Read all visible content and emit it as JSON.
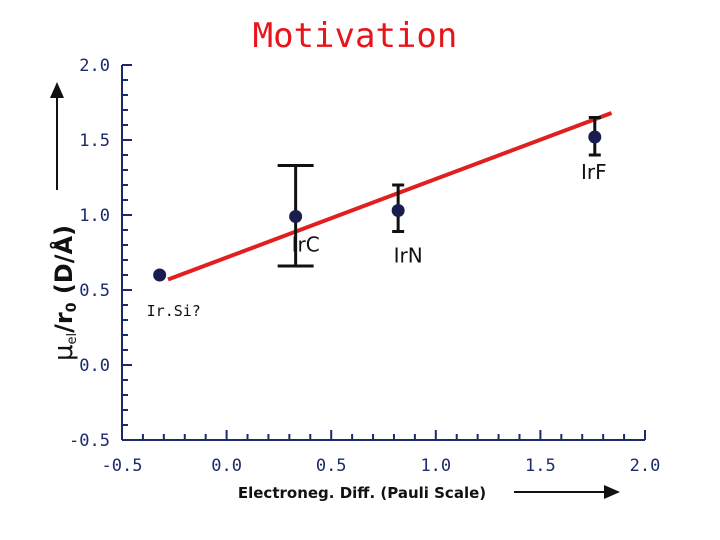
{
  "title": "Motivation",
  "chart_data": {
    "type": "scatter",
    "xlabel": "Electroneg. Diff. (Pauli Scale)",
    "ylabel_main": "μ",
    "ylabel_sub": "el",
    "ylabel_mid": "/r",
    "ylabel_sub2": "0",
    "ylabel_unit": " (D/Å)",
    "xlim": [
      -0.5,
      2.0
    ],
    "ylim": [
      -0.5,
      2.0
    ],
    "xticks": [
      "-0.5",
      "0.0",
      "0.5",
      "1.0",
      "1.5",
      "2.0"
    ],
    "yticks": [
      "-0.5",
      "0.0",
      "0.5",
      "1.0",
      "1.5",
      "2.0"
    ],
    "points": [
      {
        "label": "Ir.Si?",
        "x": -0.32,
        "y": 0.6,
        "err": null
      },
      {
        "label": "IrC",
        "x": 0.33,
        "y": 0.99,
        "err": [
          0.66,
          1.33
        ]
      },
      {
        "label": "IrN",
        "x": 0.82,
        "y": 1.03,
        "err": [
          0.89,
          1.2
        ]
      },
      {
        "label": "IrF",
        "x": 1.76,
        "y": 1.52,
        "err": [
          1.4,
          1.65
        ]
      }
    ],
    "fit_line": {
      "x": [
        -0.28,
        1.84
      ],
      "y": [
        0.57,
        1.68
      ],
      "color": "#e0201e"
    },
    "point_color": "#1a1d4e",
    "axis_color": "#1b2a6b"
  }
}
